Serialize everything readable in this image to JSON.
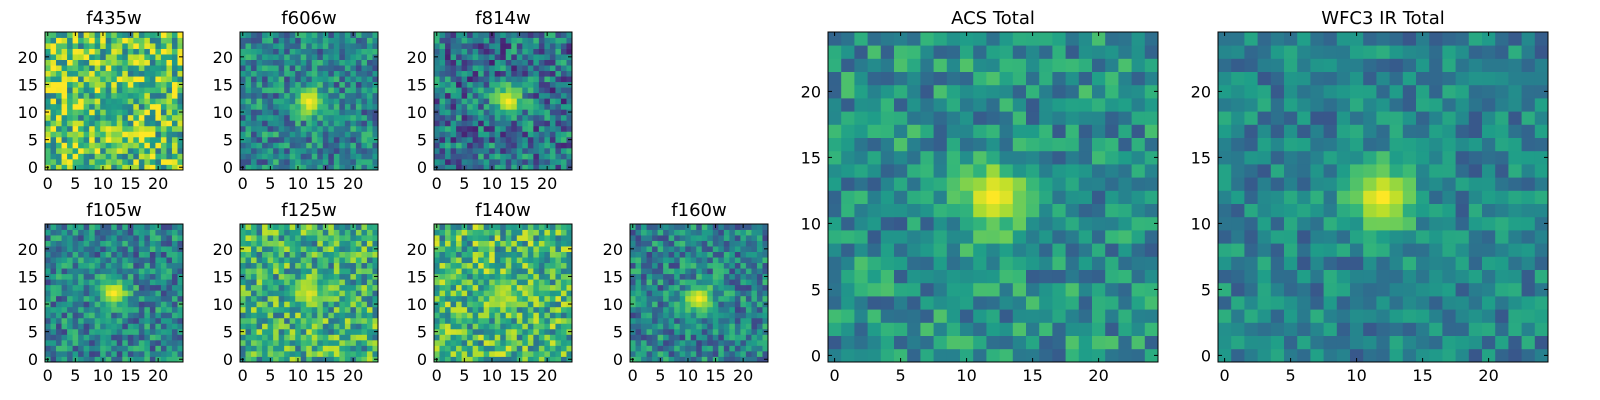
{
  "chart_data": [
    {
      "type": "heatmap",
      "title": "f435w",
      "xlim": [
        0,
        24
      ],
      "ylim": [
        0,
        24
      ],
      "xticks": [
        "0",
        "5",
        "10",
        "15",
        "20"
      ],
      "yticks": [
        "0",
        "5",
        "10",
        "15",
        "20"
      ],
      "source_center": [
        12,
        11
      ],
      "peak_level": 0.55,
      "background_level": 0.72,
      "noise_level": 0.35
    },
    {
      "type": "heatmap",
      "title": "f606w",
      "xlim": [
        0,
        24
      ],
      "ylim": [
        0,
        24
      ],
      "xticks": [
        "0",
        "5",
        "10",
        "15",
        "20"
      ],
      "yticks": [
        "0",
        "5",
        "10",
        "15",
        "20"
      ],
      "source_center": [
        12,
        12
      ],
      "peak_level": 1.0,
      "background_level": 0.45,
      "noise_level": 0.25
    },
    {
      "type": "heatmap",
      "title": "f814w",
      "xlim": [
        0,
        24
      ],
      "ylim": [
        0,
        24
      ],
      "xticks": [
        "0",
        "5",
        "10",
        "15",
        "20"
      ],
      "yticks": [
        "0",
        "5",
        "10",
        "15",
        "20"
      ],
      "source_center": [
        13,
        12
      ],
      "peak_level": 1.0,
      "background_level": 0.38,
      "noise_level": 0.3
    },
    {
      "type": "heatmap",
      "title": "f105w",
      "xlim": [
        0,
        24
      ],
      "ylim": [
        0,
        24
      ],
      "xticks": [
        "0",
        "5",
        "10",
        "15",
        "20"
      ],
      "yticks": [
        "0",
        "5",
        "10",
        "15",
        "20"
      ],
      "source_center": [
        12,
        12
      ],
      "peak_level": 1.0,
      "background_level": 0.45,
      "noise_level": 0.25
    },
    {
      "type": "heatmap",
      "title": "f125w",
      "xlim": [
        0,
        24
      ],
      "ylim": [
        0,
        24
      ],
      "xticks": [
        "0",
        "5",
        "10",
        "15",
        "20"
      ],
      "yticks": [
        "0",
        "5",
        "10",
        "15",
        "20"
      ],
      "source_center": [
        12,
        12
      ],
      "peak_level": 0.95,
      "background_level": 0.62,
      "noise_level": 0.3
    },
    {
      "type": "heatmap",
      "title": "f140w",
      "xlim": [
        0,
        24
      ],
      "ylim": [
        0,
        24
      ],
      "xticks": [
        "0",
        "5",
        "10",
        "15",
        "20"
      ],
      "yticks": [
        "0",
        "5",
        "10",
        "15",
        "20"
      ],
      "source_center": [
        12,
        12
      ],
      "peak_level": 0.9,
      "background_level": 0.65,
      "noise_level": 0.3
    },
    {
      "type": "heatmap",
      "title": "f160w",
      "xlim": [
        0,
        24
      ],
      "ylim": [
        0,
        24
      ],
      "xticks": [
        "0",
        "5",
        "10",
        "15",
        "20"
      ],
      "yticks": [
        "0",
        "5",
        "10",
        "15",
        "20"
      ],
      "source_center": [
        12,
        11
      ],
      "peak_level": 1.0,
      "background_level": 0.45,
      "noise_level": 0.25
    },
    {
      "type": "heatmap",
      "title": "ACS Total",
      "xlim": [
        0,
        24
      ],
      "ylim": [
        0,
        24
      ],
      "xticks": [
        "0",
        "5",
        "10",
        "15",
        "20"
      ],
      "yticks": [
        "0",
        "5",
        "10",
        "15",
        "20"
      ],
      "source_center": [
        12,
        12
      ],
      "peak_level": 1.0,
      "background_level": 0.5,
      "noise_level": 0.22
    },
    {
      "type": "heatmap",
      "title": "WFC3 IR Total",
      "xlim": [
        0,
        24
      ],
      "ylim": [
        0,
        24
      ],
      "xticks": [
        "0",
        "5",
        "10",
        "15",
        "20"
      ],
      "yticks": [
        "0",
        "5",
        "10",
        "15",
        "20"
      ],
      "source_center": [
        12,
        12
      ],
      "peak_level": 1.0,
      "background_level": 0.45,
      "noise_level": 0.18
    }
  ],
  "colormap": [
    "#440154",
    "#482878",
    "#3e4989",
    "#31688e",
    "#26828e",
    "#1f9e89",
    "#35b779",
    "#6ece58",
    "#b5de2b",
    "#fde725"
  ]
}
